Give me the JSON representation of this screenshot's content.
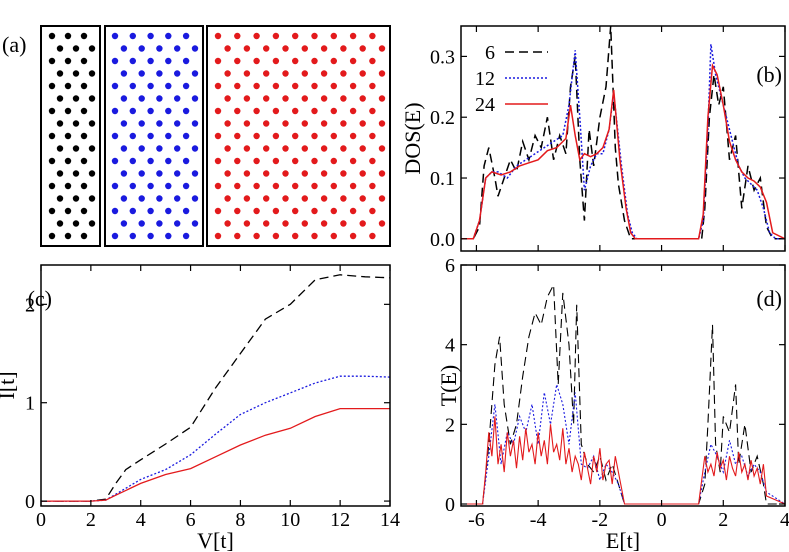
{
  "panel_labels": {
    "a": "(a)",
    "b": "(b)",
    "c": "(c)",
    "d": "(d)"
  },
  "colors": {
    "n6": "#000000",
    "n12": "#1a1adf",
    "n24": "#e31a1c"
  },
  "chart_data": [
    {
      "id": "a",
      "type": "scatter",
      "description_panels": [
        {
          "name": "6",
          "color": "#000000"
        },
        {
          "name": "12",
          "color": "#1a1adf"
        },
        {
          "name": "24",
          "color": "#e31a1c"
        }
      ]
    },
    {
      "id": "b",
      "type": "line",
      "xlim": [
        -6.5,
        4
      ],
      "ylim": [
        -0.02,
        0.35
      ],
      "ylabel": "DOS(E)",
      "xticks": [
        -6,
        -4,
        -2,
        0,
        2,
        4
      ],
      "yticks": [
        0.0,
        0.1,
        0.2,
        0.3
      ],
      "yticklabels": [
        "0.0",
        "0.1",
        "0.2",
        "0.3"
      ],
      "legend": [
        "6",
        "12",
        "24"
      ],
      "series": [
        {
          "name": "6",
          "style": "dashed",
          "color": "#000000",
          "x": [
            -6.5,
            -6.1,
            -5.9,
            -5.75,
            -5.6,
            -5.4,
            -5.3,
            -5.1,
            -4.9,
            -4.7,
            -4.5,
            -4.3,
            -4.1,
            -3.9,
            -3.7,
            -3.5,
            -3.3,
            -3.1,
            -2.95,
            -2.8,
            -2.65,
            -2.5,
            -2.35,
            -2.2,
            -2.0,
            -1.8,
            -1.65,
            -1.5,
            -1.4,
            -1.2,
            -1.0,
            -0.9,
            -0.8,
            1.2,
            1.3,
            1.4,
            1.55,
            1.7,
            1.85,
            2.0,
            2.2,
            2.4,
            2.6,
            2.8,
            3.0,
            3.2,
            3.4,
            3.6,
            3.8,
            4.0
          ],
          "y": [
            0,
            0,
            0.02,
            0.12,
            0.15,
            0.1,
            0.07,
            0.1,
            0.13,
            0.11,
            0.16,
            0.13,
            0.17,
            0.15,
            0.2,
            0.13,
            0.17,
            0.14,
            0.25,
            0.3,
            0.13,
            0.03,
            0.18,
            0.12,
            0.2,
            0.25,
            0.35,
            0.15,
            0.09,
            0.03,
            0,
            0,
            0,
            0,
            0,
            0.05,
            0.2,
            0.27,
            0.22,
            0.25,
            0.13,
            0.17,
            0.05,
            0.12,
            0.08,
            0.1,
            0.02,
            0,
            0,
            0
          ]
        },
        {
          "name": "12",
          "style": "dotted",
          "color": "#1a1adf",
          "x": [
            -6.5,
            -6.1,
            -5.9,
            -5.7,
            -5.5,
            -5.3,
            -5.0,
            -4.7,
            -4.4,
            -4.1,
            -3.8,
            -3.5,
            -3.2,
            -3.0,
            -2.8,
            -2.65,
            -2.5,
            -2.3,
            -2.1,
            -1.9,
            -1.7,
            -1.55,
            -1.3,
            -1.1,
            -0.95,
            -0.8,
            1.2,
            1.35,
            1.5,
            1.6,
            1.75,
            1.9,
            2.1,
            2.3,
            2.5,
            2.7,
            2.9,
            3.1,
            3.3,
            3.5,
            3.7,
            4.0
          ],
          "y": [
            0,
            0,
            0.03,
            0.1,
            0.11,
            0.11,
            0.1,
            0.12,
            0.13,
            0.14,
            0.15,
            0.16,
            0.17,
            0.22,
            0.31,
            0.2,
            0.08,
            0.12,
            0.14,
            0.14,
            0.18,
            0.24,
            0.12,
            0.04,
            0.01,
            0,
            0,
            0.03,
            0.18,
            0.32,
            0.27,
            0.24,
            0.2,
            0.16,
            0.12,
            0.1,
            0.09,
            0.08,
            0.05,
            0.01,
            0,
            0
          ]
        },
        {
          "name": "24",
          "style": "solid",
          "color": "#e31a1c",
          "x": [
            -6.5,
            -6.1,
            -5.9,
            -5.7,
            -5.5,
            -5.2,
            -4.9,
            -4.6,
            -4.3,
            -4.0,
            -3.7,
            -3.4,
            -3.1,
            -2.95,
            -2.8,
            -2.65,
            -2.5,
            -2.3,
            -2.1,
            -1.9,
            -1.7,
            -1.55,
            -1.35,
            -1.15,
            -1.0,
            -0.85,
            1.2,
            1.35,
            1.5,
            1.65,
            1.8,
            2.0,
            2.2,
            2.4,
            2.6,
            2.8,
            3.0,
            3.2,
            3.4,
            3.6,
            4.0
          ],
          "y": [
            0,
            0,
            0.03,
            0.1,
            0.11,
            0.105,
            0.11,
            0.12,
            0.125,
            0.13,
            0.145,
            0.15,
            0.165,
            0.22,
            0.17,
            0.13,
            0.14,
            0.135,
            0.14,
            0.15,
            0.18,
            0.245,
            0.13,
            0.05,
            0.01,
            0,
            0,
            0.04,
            0.2,
            0.285,
            0.27,
            0.22,
            0.16,
            0.13,
            0.11,
            0.1,
            0.095,
            0.085,
            0.06,
            0.01,
            0
          ]
        }
      ]
    },
    {
      "id": "c",
      "type": "line",
      "xlim": [
        0,
        14
      ],
      "ylim": [
        -0.05,
        2.4
      ],
      "xlabel": "V[t]",
      "ylabel": "I[t]",
      "xticks": [
        0,
        2,
        4,
        6,
        8,
        10,
        12,
        14
      ],
      "yticks": [
        0,
        1,
        2
      ],
      "series": [
        {
          "name": "6",
          "style": "dashed",
          "color": "#000000",
          "x": [
            0,
            2,
            2.6,
            3,
            3.4,
            4,
            5,
            6,
            7,
            8,
            9,
            10,
            11,
            12,
            13,
            14
          ],
          "y": [
            0,
            0,
            0.02,
            0.18,
            0.32,
            0.42,
            0.58,
            0.75,
            1.15,
            1.5,
            1.85,
            2.0,
            2.25,
            2.3,
            2.28,
            2.27
          ]
        },
        {
          "name": "12",
          "style": "dotted",
          "color": "#1a1adf",
          "x": [
            0,
            2,
            2.6,
            3,
            4,
            5,
            6,
            7,
            8,
            9,
            10,
            11,
            12,
            13,
            14
          ],
          "y": [
            0,
            0,
            0.01,
            0.07,
            0.22,
            0.32,
            0.47,
            0.68,
            0.88,
            1.0,
            1.1,
            1.2,
            1.27,
            1.27,
            1.26
          ]
        },
        {
          "name": "24",
          "style": "solid",
          "color": "#e31a1c",
          "x": [
            0,
            2,
            2.6,
            3,
            4,
            5,
            6,
            7,
            8,
            9,
            10,
            11,
            12,
            13,
            14
          ],
          "y": [
            0,
            0,
            0.01,
            0.06,
            0.18,
            0.27,
            0.33,
            0.45,
            0.57,
            0.67,
            0.74,
            0.86,
            0.94,
            0.94,
            0.94
          ]
        }
      ]
    },
    {
      "id": "d",
      "type": "line",
      "xlim": [
        -6.5,
        4
      ],
      "ylim": [
        -0.05,
        6
      ],
      "xlabel": "E[t]",
      "ylabel": "T(E)",
      "xticks": [
        -6,
        -4,
        -2,
        0,
        2,
        4
      ],
      "yticks": [
        0,
        2,
        4,
        6
      ],
      "series": [
        {
          "name": "6",
          "style": "dashed",
          "color": "#000000",
          "x": [
            -6.5,
            -5.8,
            -5.6,
            -5.4,
            -5.25,
            -5.1,
            -4.9,
            -4.7,
            -4.5,
            -4.3,
            -4.1,
            -3.9,
            -3.7,
            -3.5,
            -3.35,
            -3.2,
            -3.0,
            -2.85,
            -2.75,
            -2.6,
            -2.4,
            -2.2,
            -2.0,
            -1.8,
            -1.6,
            -1.4,
            -1.2,
            1.2,
            1.4,
            1.5,
            1.65,
            1.75,
            1.9,
            2.0,
            2.2,
            2.4,
            2.5,
            2.7,
            2.9,
            3.1,
            3.3,
            3.4,
            3.6,
            4.0
          ],
          "y": [
            0,
            0,
            1.5,
            3.5,
            4.2,
            2.5,
            1.5,
            2.0,
            3.2,
            4.2,
            4.8,
            4.5,
            5.2,
            5.5,
            3.0,
            5.3,
            4.0,
            2.0,
            5.0,
            1.5,
            1.0,
            0.8,
            1.2,
            0.6,
            1.0,
            0.5,
            0,
            0,
            0.5,
            2.0,
            4.5,
            1.5,
            0.8,
            2.2,
            1.8,
            3.0,
            1.0,
            2.0,
            0.8,
            1.2,
            0.5,
            0,
            0,
            0
          ]
        },
        {
          "name": "12",
          "style": "dotted",
          "color": "#1a1adf",
          "x": [
            -6.5,
            -5.8,
            -5.6,
            -5.4,
            -5.2,
            -5.0,
            -4.8,
            -4.6,
            -4.4,
            -4.2,
            -4.0,
            -3.8,
            -3.6,
            -3.4,
            -3.2,
            -3.0,
            -2.8,
            -2.6,
            -2.4,
            -2.2,
            -2.0,
            -1.8,
            -1.6,
            -1.4,
            -1.2,
            1.2,
            1.4,
            1.6,
            1.8,
            2.0,
            2.2,
            2.4,
            2.6,
            2.8,
            3.0,
            3.2,
            3.4,
            4.0
          ],
          "y": [
            0,
            0,
            1.2,
            2.5,
            1.0,
            1.8,
            1.5,
            2.2,
            1.8,
            2.5,
            1.5,
            2.8,
            2.0,
            3.0,
            2.5,
            1.5,
            2.8,
            1.0,
            0.9,
            1.2,
            0.6,
            1.0,
            0.8,
            0.5,
            0,
            0,
            0.8,
            1.5,
            1.2,
            0.8,
            1.6,
            1.0,
            1.2,
            0.7,
            1.0,
            0.8,
            0.3,
            0
          ]
        },
        {
          "name": "24",
          "style": "solid",
          "color": "#e31a1c",
          "x": [
            -6.5,
            -5.8,
            -5.7,
            -5.6,
            -5.5,
            -5.4,
            -5.3,
            -5.2,
            -5.1,
            -5.0,
            -4.9,
            -4.8,
            -4.7,
            -4.6,
            -4.5,
            -4.4,
            -4.3,
            -4.2,
            -4.1,
            -4.0,
            -3.9,
            -3.8,
            -3.7,
            -3.6,
            -3.5,
            -3.4,
            -3.3,
            -3.2,
            -3.1,
            -3.0,
            -2.9,
            -2.8,
            -2.7,
            -2.6,
            -2.5,
            -2.4,
            -2.3,
            -2.2,
            -2.1,
            -2.0,
            -1.9,
            -1.8,
            -1.7,
            -1.6,
            -1.5,
            -1.4,
            -1.3,
            -1.2,
            1.2,
            1.3,
            1.4,
            1.5,
            1.6,
            1.7,
            1.8,
            1.9,
            2.0,
            2.1,
            2.2,
            2.3,
            2.4,
            2.5,
            2.6,
            2.7,
            2.8,
            2.9,
            3.0,
            3.1,
            3.2,
            3.3,
            3.4,
            4.0
          ],
          "y": [
            0,
            0,
            0.8,
            1.8,
            1.2,
            2.2,
            1.0,
            1.5,
            0.8,
            1.8,
            1.2,
            1.6,
            0.9,
            1.7,
            1.1,
            1.9,
            1.3,
            1.5,
            1.0,
            1.8,
            1.2,
            1.6,
            1.0,
            2.0,
            1.3,
            1.5,
            1.1,
            1.9,
            1.0,
            1.4,
            0.8,
            1.2,
            1.0,
            0.6,
            1.3,
            0.9,
            0.5,
            1.2,
            0.8,
            1.4,
            0.6,
            1.0,
            1.1,
            0.5,
            1.2,
            0.8,
            0.4,
            0,
            0,
            0.6,
            1.2,
            0.8,
            1.0,
            0.7,
            1.3,
            0.9,
            1.1,
            0.6,
            1.2,
            0.9,
            0.7,
            1.3,
            0.8,
            1.0,
            0.6,
            1.1,
            0.7,
            0.9,
            0.5,
            1.0,
            0.2,
            0
          ]
        }
      ]
    }
  ]
}
